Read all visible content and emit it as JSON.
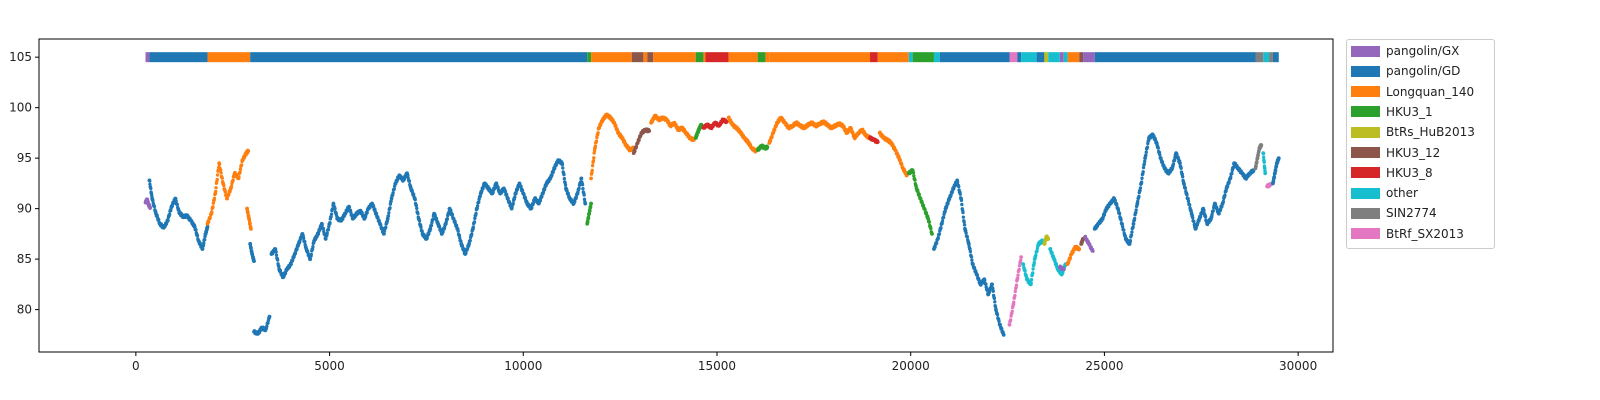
{
  "chart_data": {
    "type": "scatter",
    "title": "",
    "xlabel": "",
    "ylabel": "",
    "xlim": [
      -2500,
      30900
    ],
    "ylim": [
      75.8,
      106.8
    ],
    "xticks": [
      0,
      5000,
      10000,
      15000,
      20000,
      25000,
      30000
    ],
    "xtick_labels": [
      "0",
      "5000",
      "10000",
      "15000",
      "20000",
      "25000",
      "30000"
    ],
    "yticks": [
      80,
      85,
      90,
      95,
      100,
      105
    ],
    "ytick_labels": [
      "80",
      "85",
      "90",
      "95",
      "100",
      "105"
    ],
    "grid": false,
    "legend_placement": "outside-upper-right",
    "series": [
      {
        "name": "pangolin/GX",
        "color": "#9467bd"
      },
      {
        "name": "pangolin/GD",
        "color": "#1f77b4"
      },
      {
        "name": "Longquan_140",
        "color": "#ff7f0e"
      },
      {
        "name": "HKU3_1",
        "color": "#2ca02c"
      },
      {
        "name": "BtRs_HuB2013",
        "color": "#bcbd22"
      },
      {
        "name": "HKU3_12",
        "color": "#8c564b"
      },
      {
        "name": "HKU3_8",
        "color": "#d62728"
      },
      {
        "name": "other",
        "color": "#17becf"
      },
      {
        "name": "SIN2774",
        "color": "#7f7f7f"
      },
      {
        "name": "BtRf_SX2013",
        "color": "#e377c2"
      }
    ],
    "top_bar": {
      "y": 105,
      "segments": [
        {
          "x0": 250,
          "x1": 350,
          "series": "pangolin/GX"
        },
        {
          "x0": 350,
          "x1": 1850,
          "series": "pangolin/GD"
        },
        {
          "x0": 1850,
          "x1": 2950,
          "series": "Longquan_140"
        },
        {
          "x0": 2950,
          "x1": 11650,
          "series": "pangolin/GD"
        },
        {
          "x0": 11650,
          "x1": 11750,
          "series": "HKU3_1"
        },
        {
          "x0": 11750,
          "x1": 12800,
          "series": "Longquan_140"
        },
        {
          "x0": 12800,
          "x1": 13100,
          "series": "HKU3_12"
        },
        {
          "x0": 13100,
          "x1": 13200,
          "series": "Longquan_140"
        },
        {
          "x0": 13200,
          "x1": 13350,
          "series": "HKU3_12"
        },
        {
          "x0": 13350,
          "x1": 14450,
          "series": "Longquan_140"
        },
        {
          "x0": 14450,
          "x1": 14650,
          "series": "HKU3_1"
        },
        {
          "x0": 14650,
          "x1": 14700,
          "series": "Longquan_140"
        },
        {
          "x0": 14700,
          "x1": 15300,
          "series": "HKU3_8"
        },
        {
          "x0": 15300,
          "x1": 16050,
          "series": "Longquan_140"
        },
        {
          "x0": 16050,
          "x1": 16250,
          "series": "HKU3_1"
        },
        {
          "x0": 16250,
          "x1": 16350,
          "series": "Longquan_140"
        },
        {
          "x0": 16350,
          "x1": 18950,
          "series": "Longquan_140"
        },
        {
          "x0": 18950,
          "x1": 19150,
          "series": "HKU3_8"
        },
        {
          "x0": 19150,
          "x1": 19950,
          "series": "Longquan_140"
        },
        {
          "x0": 19950,
          "x1": 20050,
          "series": "other"
        },
        {
          "x0": 20050,
          "x1": 20600,
          "series": "HKU3_1"
        },
        {
          "x0": 20600,
          "x1": 20750,
          "series": "other"
        },
        {
          "x0": 20750,
          "x1": 22550,
          "series": "pangolin/GD"
        },
        {
          "x0": 22550,
          "x1": 22750,
          "series": "BtRf_SX2013"
        },
        {
          "x0": 22750,
          "x1": 22850,
          "series": "pangolin/GD"
        },
        {
          "x0": 22850,
          "x1": 23250,
          "series": "other"
        },
        {
          "x0": 23250,
          "x1": 23450,
          "series": "pangolin/GD"
        },
        {
          "x0": 23450,
          "x1": 23550,
          "series": "BtRs_HuB2013"
        },
        {
          "x0": 23550,
          "x1": 23850,
          "series": "other"
        },
        {
          "x0": 23850,
          "x1": 23950,
          "series": "pangolin/GX"
        },
        {
          "x0": 23950,
          "x1": 24050,
          "series": "other"
        },
        {
          "x0": 24050,
          "x1": 24350,
          "series": "Longquan_140"
        },
        {
          "x0": 24350,
          "x1": 24450,
          "series": "HKU3_12"
        },
        {
          "x0": 24450,
          "x1": 24750,
          "series": "pangolin/GX"
        },
        {
          "x0": 24750,
          "x1": 28900,
          "series": "pangolin/GD"
        },
        {
          "x0": 28900,
          "x1": 29100,
          "series": "SIN2774"
        },
        {
          "x0": 29100,
          "x1": 29250,
          "series": "other"
        },
        {
          "x0": 29250,
          "x1": 29350,
          "series": "SIN2774"
        },
        {
          "x0": 29350,
          "x1": 29500,
          "series": "pangolin/GD"
        }
      ]
    },
    "points": [
      {
        "series": "pangolin/GX",
        "x": [
          250,
          290,
          330,
          370
        ],
        "y": [
          90.6,
          90.9,
          90.4,
          90.1
        ]
      },
      {
        "series": "pangolin/GD",
        "x": [
          350,
          420,
          520,
          620,
          720,
          820,
          920,
          1020,
          1120,
          1220,
          1320,
          1420,
          1520,
          1620,
          1720,
          1800,
          1850
        ],
        "y": [
          92.8,
          91.0,
          89.5,
          88.5,
          88.1,
          88.8,
          90.2,
          91.0,
          89.6,
          89.2,
          89.3,
          88.8,
          88.2,
          86.8,
          86.0,
          87.5,
          88.2
        ]
      },
      {
        "series": "Longquan_140",
        "x": [
          1850,
          1950,
          2050,
          2150,
          2250,
          2350,
          2450,
          2550,
          2650,
          2750,
          2850,
          2900
        ],
        "y": [
          88.5,
          89.5,
          91.5,
          94.5,
          92.5,
          91.0,
          92.0,
          93.5,
          93.0,
          94.8,
          95.5,
          95.7
        ]
      },
      {
        "series": "Longquan_140",
        "x": [
          2870,
          2920,
          2970
        ],
        "y": [
          90.0,
          89.0,
          88.0
        ]
      },
      {
        "series": "pangolin/GD",
        "x": [
          2950,
          3000,
          3050
        ],
        "y": [
          86.5,
          85.5,
          84.8
        ]
      },
      {
        "series": "pangolin/GD",
        "x": [
          3050,
          3150,
          3250,
          3350,
          3450
        ],
        "y": [
          77.8,
          77.6,
          78.2,
          78.0,
          79.3
        ]
      },
      {
        "series": "pangolin/GD",
        "x": [
          3500,
          3600,
          3700,
          3800,
          3900,
          4000,
          4100,
          4200,
          4300,
          4400,
          4500,
          4600,
          4700,
          4800,
          4900,
          5000,
          5100,
          5200,
          5300,
          5400,
          5500,
          5600,
          5700,
          5800,
          5900,
          6000,
          6100,
          6200,
          6300,
          6400,
          6500,
          6600,
          6700,
          6800,
          6900,
          7000,
          7100,
          7200,
          7300,
          7400,
          7500,
          7600,
          7700,
          7800,
          7900,
          8000,
          8100,
          8200,
          8300,
          8400,
          8500,
          8600,
          8700,
          8800,
          8900,
          9000,
          9100,
          9200,
          9300,
          9400,
          9500,
          9600,
          9700,
          9800,
          9900,
          10000,
          10100,
          10200,
          10300,
          10400,
          10500,
          10600,
          10700,
          10800,
          10900,
          11000,
          11100,
          11200,
          11300,
          11400,
          11500,
          11600
        ],
        "y": [
          85.5,
          86.0,
          84.0,
          83.2,
          84.0,
          84.5,
          85.5,
          86.5,
          87.5,
          86.0,
          85.0,
          86.8,
          87.5,
          88.5,
          87.0,
          88.5,
          90.5,
          89.0,
          88.8,
          89.5,
          90.2,
          89.0,
          89.5,
          89.8,
          89.0,
          90.0,
          90.5,
          89.5,
          88.5,
          87.5,
          89.0,
          91.0,
          92.5,
          93.3,
          92.8,
          93.5,
          92.0,
          91.0,
          89.0,
          87.5,
          87.0,
          88.0,
          89.5,
          88.5,
          87.5,
          88.5,
          90.0,
          89.0,
          88.0,
          86.5,
          85.5,
          86.5,
          88.0,
          90.0,
          91.5,
          92.5,
          92.0,
          91.5,
          92.5,
          91.5,
          92.0,
          91.0,
          90.0,
          91.5,
          92.5,
          91.5,
          90.5,
          90.0,
          91.0,
          90.5,
          91.5,
          92.5,
          93.0,
          94.0,
          94.8,
          94.5,
          92.0,
          91.0,
          90.5,
          91.5,
          93.0,
          90.5
        ]
      },
      {
        "series": "HKU3_1",
        "x": [
          11650,
          11700,
          11750
        ],
        "y": [
          88.5,
          89.5,
          90.5
        ]
      },
      {
        "series": "Longquan_140",
        "x": [
          11750,
          11850,
          11950,
          12050,
          12150,
          12250,
          12350,
          12450,
          12550,
          12650,
          12750,
          12850
        ],
        "y": [
          93.0,
          96.0,
          98.0,
          98.8,
          99.3,
          99.0,
          98.5,
          97.5,
          97.0,
          96.3,
          95.8,
          96.0
        ]
      },
      {
        "series": "HKU3_12",
        "x": [
          12850,
          12950,
          13050,
          13150,
          13250
        ],
        "y": [
          95.5,
          96.5,
          97.5,
          97.8,
          97.7
        ]
      },
      {
        "series": "Longquan_140",
        "x": [
          13300,
          13400,
          13500,
          13600,
          13700,
          13800,
          13900,
          14000,
          14100,
          14200,
          14300,
          14400
        ],
        "y": [
          98.5,
          99.2,
          98.8,
          99.0,
          98.8,
          98.2,
          98.5,
          97.8,
          98.0,
          97.5,
          97.0,
          96.8
        ]
      },
      {
        "series": "HKU3_1",
        "x": [
          14450,
          14500,
          14550,
          14600
        ],
        "y": [
          97.0,
          97.5,
          98.0,
          98.3
        ]
      },
      {
        "series": "HKU3_8",
        "x": [
          14650,
          14750,
          14850,
          14950,
          15050,
          15150,
          15250
        ],
        "y": [
          98.0,
          98.3,
          98.0,
          98.5,
          98.2,
          98.8,
          98.6
        ]
      },
      {
        "series": "Longquan_140",
        "x": [
          15300,
          15400,
          15500,
          15600,
          15700,
          15800,
          15900,
          16000
        ],
        "y": [
          99.0,
          98.3,
          98.0,
          97.6,
          97.0,
          96.6,
          96.0,
          95.7
        ]
      },
      {
        "series": "HKU3_1",
        "x": [
          16050,
          16150,
          16250,
          16300
        ],
        "y": [
          95.8,
          96.2,
          96.0,
          96.1
        ]
      },
      {
        "series": "Longquan_140",
        "x": [
          16350,
          16450,
          16550,
          16650,
          16750,
          16850,
          16950,
          17050,
          17150,
          17250,
          17350,
          17450,
          17550,
          17650,
          17750,
          17850,
          17950,
          18050,
          18150,
          18250,
          18350,
          18450,
          18550,
          18650,
          18750,
          18850,
          18950
        ],
        "y": [
          96.5,
          97.5,
          98.5,
          99.0,
          98.5,
          98.0,
          98.2,
          98.5,
          98.2,
          98.0,
          98.3,
          98.5,
          98.2,
          98.4,
          98.6,
          98.3,
          98.0,
          98.2,
          98.4,
          98.2,
          97.5,
          98.0,
          97.0,
          97.5,
          97.8,
          97.2,
          97.0
        ]
      },
      {
        "series": "HKU3_8",
        "x": [
          18950,
          19050,
          19150
        ],
        "y": [
          97.0,
          96.8,
          96.6
        ]
      },
      {
        "series": "Longquan_140",
        "x": [
          19200,
          19300,
          19400,
          19500,
          19600,
          19700,
          19800,
          19900
        ],
        "y": [
          97.5,
          97.0,
          96.8,
          96.5,
          95.8,
          95.0,
          94.0,
          93.3
        ]
      },
      {
        "series": "HKU3_1",
        "x": [
          19950,
          20050,
          20150,
          20250,
          20350,
          20450,
          20550
        ],
        "y": [
          93.5,
          93.8,
          92.0,
          91.0,
          90.0,
          89.0,
          87.5
        ]
      },
      {
        "series": "pangolin/GD",
        "x": [
          20600,
          20700,
          20800,
          20900,
          21000,
          21100,
          21200,
          21300,
          21400,
          21500,
          21600,
          21700,
          21800,
          21900,
          22000,
          22100,
          22200,
          22300,
          22400
        ],
        "y": [
          86.0,
          87.0,
          88.5,
          90.0,
          91.0,
          92.0,
          92.8,
          91.0,
          88.0,
          86.5,
          84.5,
          83.5,
          82.5,
          83.0,
          81.5,
          82.5,
          80.0,
          78.5,
          77.5
        ]
      },
      {
        "series": "BtRf_SX2013",
        "x": [
          22550,
          22650,
          22750,
          22850
        ],
        "y": [
          78.5,
          80.5,
          83.0,
          85.2
        ]
      },
      {
        "series": "other",
        "x": [
          22900,
          23000,
          23100,
          23200,
          23300,
          23400
        ],
        "y": [
          84.5,
          83.0,
          82.5,
          85.0,
          86.5,
          86.8
        ]
      },
      {
        "series": "BtRs_HuB2013",
        "x": [
          23450,
          23500,
          23550
        ],
        "y": [
          86.5,
          87.2,
          87.0
        ]
      },
      {
        "series": "other",
        "x": [
          23600,
          23700,
          23800,
          23900,
          24000
        ],
        "y": [
          86.0,
          85.0,
          84.0,
          83.5,
          84.5
        ]
      },
      {
        "series": "pangolin/GX",
        "x": [
          23850,
          23950
        ],
        "y": [
          84.2,
          84.0
        ]
      },
      {
        "series": "Longquan_140",
        "x": [
          24050,
          24150,
          24250,
          24350
        ],
        "y": [
          84.5,
          85.5,
          86.2,
          86.0
        ]
      },
      {
        "series": "HKU3_12",
        "x": [
          24400,
          24450
        ],
        "y": [
          86.5,
          87.0
        ]
      },
      {
        "series": "pangolin/GX",
        "x": [
          24500,
          24600,
          24700
        ],
        "y": [
          87.2,
          86.5,
          85.8
        ]
      },
      {
        "series": "pangolin/GD",
        "x": [
          24750,
          24850,
          24950,
          25050,
          25150,
          25250,
          25350,
          25450,
          25550,
          25650,
          25750,
          25850,
          25950,
          26050,
          26150,
          26250,
          26350,
          26450,
          26550,
          26650,
          26750,
          26850,
          26950,
          27050,
          27150,
          27250,
          27350,
          27450,
          27550,
          27650,
          27750,
          27850,
          27950,
          28050,
          28150,
          28250,
          28350,
          28450,
          28550,
          28650,
          28750,
          28850
        ],
        "y": [
          88.0,
          88.5,
          89.0,
          90.0,
          90.5,
          91.0,
          90.0,
          88.5,
          87.0,
          86.5,
          88.5,
          90.5,
          92.5,
          95.0,
          97.0,
          97.3,
          96.5,
          95.0,
          94.0,
          93.5,
          94.0,
          95.5,
          94.5,
          92.5,
          91.0,
          89.5,
          88.0,
          89.0,
          90.0,
          88.5,
          89.0,
          90.5,
          89.5,
          90.5,
          92.0,
          93.0,
          94.5,
          94.0,
          93.5,
          93.0,
          93.5,
          93.8
        ]
      },
      {
        "series": "SIN2774",
        "x": [
          28900,
          28950,
          29000,
          29050
        ],
        "y": [
          94.0,
          95.0,
          96.0,
          96.3
        ]
      },
      {
        "series": "other",
        "x": [
          29100,
          29150
        ],
        "y": [
          95.5,
          93.5
        ]
      },
      {
        "series": "BtRf_SX2013",
        "x": [
          29200,
          29300
        ],
        "y": [
          92.2,
          92.4
        ]
      },
      {
        "series": "pangolin/GD",
        "x": [
          29350,
          29400,
          29450,
          29500
        ],
        "y": [
          92.5,
          93.5,
          94.5,
          95.0
        ]
      }
    ]
  }
}
